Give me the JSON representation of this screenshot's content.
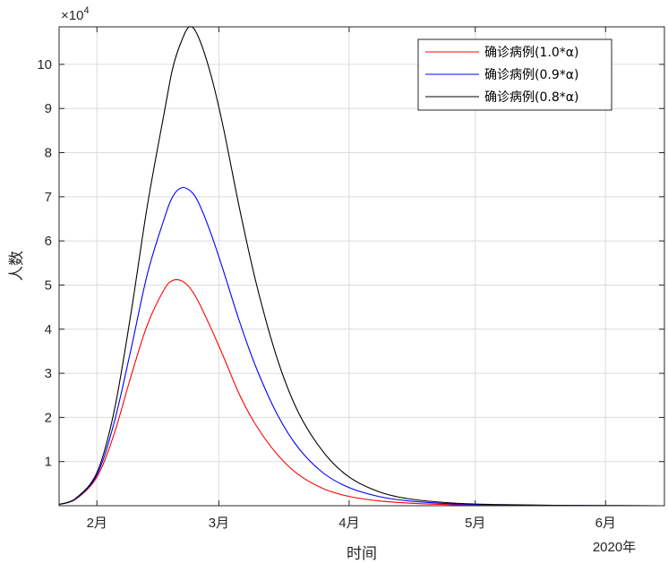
{
  "chart_data": {
    "type": "line",
    "xlabel": "时间",
    "ylabel": "人数",
    "x_year_label": "2020年",
    "y_exponent_label": "×10",
    "y_exponent_power": "4",
    "x_ticks": [
      {
        "label": "2月",
        "value": "2020-02-01"
      },
      {
        "label": "3月",
        "value": "2020-03-01"
      },
      {
        "label": "4月",
        "value": "2020-04-01"
      },
      {
        "label": "5月",
        "value": "2020-05-01"
      },
      {
        "label": "6月",
        "value": "2020-06-01"
      }
    ],
    "xlim": [
      "2020-01-23",
      "2020-06-15"
    ],
    "y_ticks": [
      {
        "label": "1",
        "value": 10000
      },
      {
        "label": "2",
        "value": 20000
      },
      {
        "label": "3",
        "value": 30000
      },
      {
        "label": "4",
        "value": 40000
      },
      {
        "label": "5",
        "value": 50000
      },
      {
        "label": "6",
        "value": 60000
      },
      {
        "label": "7",
        "value": 70000
      },
      {
        "label": "8",
        "value": 80000
      },
      {
        "label": "9",
        "value": 90000
      },
      {
        "label": "10",
        "value": 100000
      }
    ],
    "ylim": [
      0,
      108500
    ],
    "grid": true,
    "legend_position": "top-right",
    "series": [
      {
        "name": "确诊病例(1.0*α)",
        "color": "#ff0000",
        "x": [
          "2020-01-23",
          "2020-01-27",
          "2020-02-01",
          "2020-02-05",
          "2020-02-09",
          "2020-02-13",
          "2020-02-17",
          "2020-02-19",
          "2020-02-21",
          "2020-02-23",
          "2020-02-25",
          "2020-02-28",
          "2020-03-02",
          "2020-03-06",
          "2020-03-10",
          "2020-03-15",
          "2020-03-20",
          "2020-03-26",
          "2020-04-01",
          "2020-04-08",
          "2020-04-15",
          "2020-04-25",
          "2020-05-05",
          "2020-05-20",
          "2020-06-15"
        ],
        "y": [
          300,
          1500,
          6500,
          16000,
          29000,
          41000,
          49000,
          51000,
          51000,
          49500,
          46500,
          40500,
          34000,
          25000,
          18000,
          11500,
          7000,
          3800,
          2100,
          1100,
          600,
          250,
          120,
          40,
          0
        ]
      },
      {
        "name": "确诊病例(0.9*α)",
        "color": "#0000ff",
        "x": [
          "2020-01-23",
          "2020-01-27",
          "2020-02-01",
          "2020-02-05",
          "2020-02-09",
          "2020-02-13",
          "2020-02-17",
          "2020-02-19",
          "2020-02-21",
          "2020-02-23",
          "2020-02-25",
          "2020-02-28",
          "2020-03-02",
          "2020-03-06",
          "2020-03-10",
          "2020-03-15",
          "2020-03-20",
          "2020-03-26",
          "2020-04-01",
          "2020-04-08",
          "2020-04-15",
          "2020-04-25",
          "2020-05-05",
          "2020-05-20",
          "2020-06-15"
        ],
        "y": [
          300,
          1600,
          7000,
          18500,
          35000,
          52500,
          65000,
          70000,
          72000,
          71500,
          69000,
          62000,
          53500,
          41500,
          31000,
          20500,
          13000,
          7300,
          4100,
          2100,
          1100,
          450,
          200,
          60,
          0
        ]
      },
      {
        "name": "确诊病例(0.8*α)",
        "color": "#000000",
        "x": [
          "2020-01-23",
          "2020-01-27",
          "2020-02-01",
          "2020-02-05",
          "2020-02-09",
          "2020-02-13",
          "2020-02-17",
          "2020-02-19",
          "2020-02-21",
          "2020-02-23",
          "2020-02-25",
          "2020-02-28",
          "2020-03-02",
          "2020-03-06",
          "2020-03-10",
          "2020-03-15",
          "2020-03-20",
          "2020-03-26",
          "2020-04-01",
          "2020-04-08",
          "2020-04-15",
          "2020-04-25",
          "2020-05-05",
          "2020-05-20",
          "2020-06-15"
        ],
        "y": [
          300,
          1700,
          7500,
          21000,
          43000,
          68000,
          89000,
          99000,
          105000,
          108500,
          106500,
          98000,
          86000,
          67000,
          50000,
          33000,
          21000,
          12000,
          6500,
          3200,
          1600,
          650,
          280,
          80,
          0
        ]
      }
    ]
  }
}
